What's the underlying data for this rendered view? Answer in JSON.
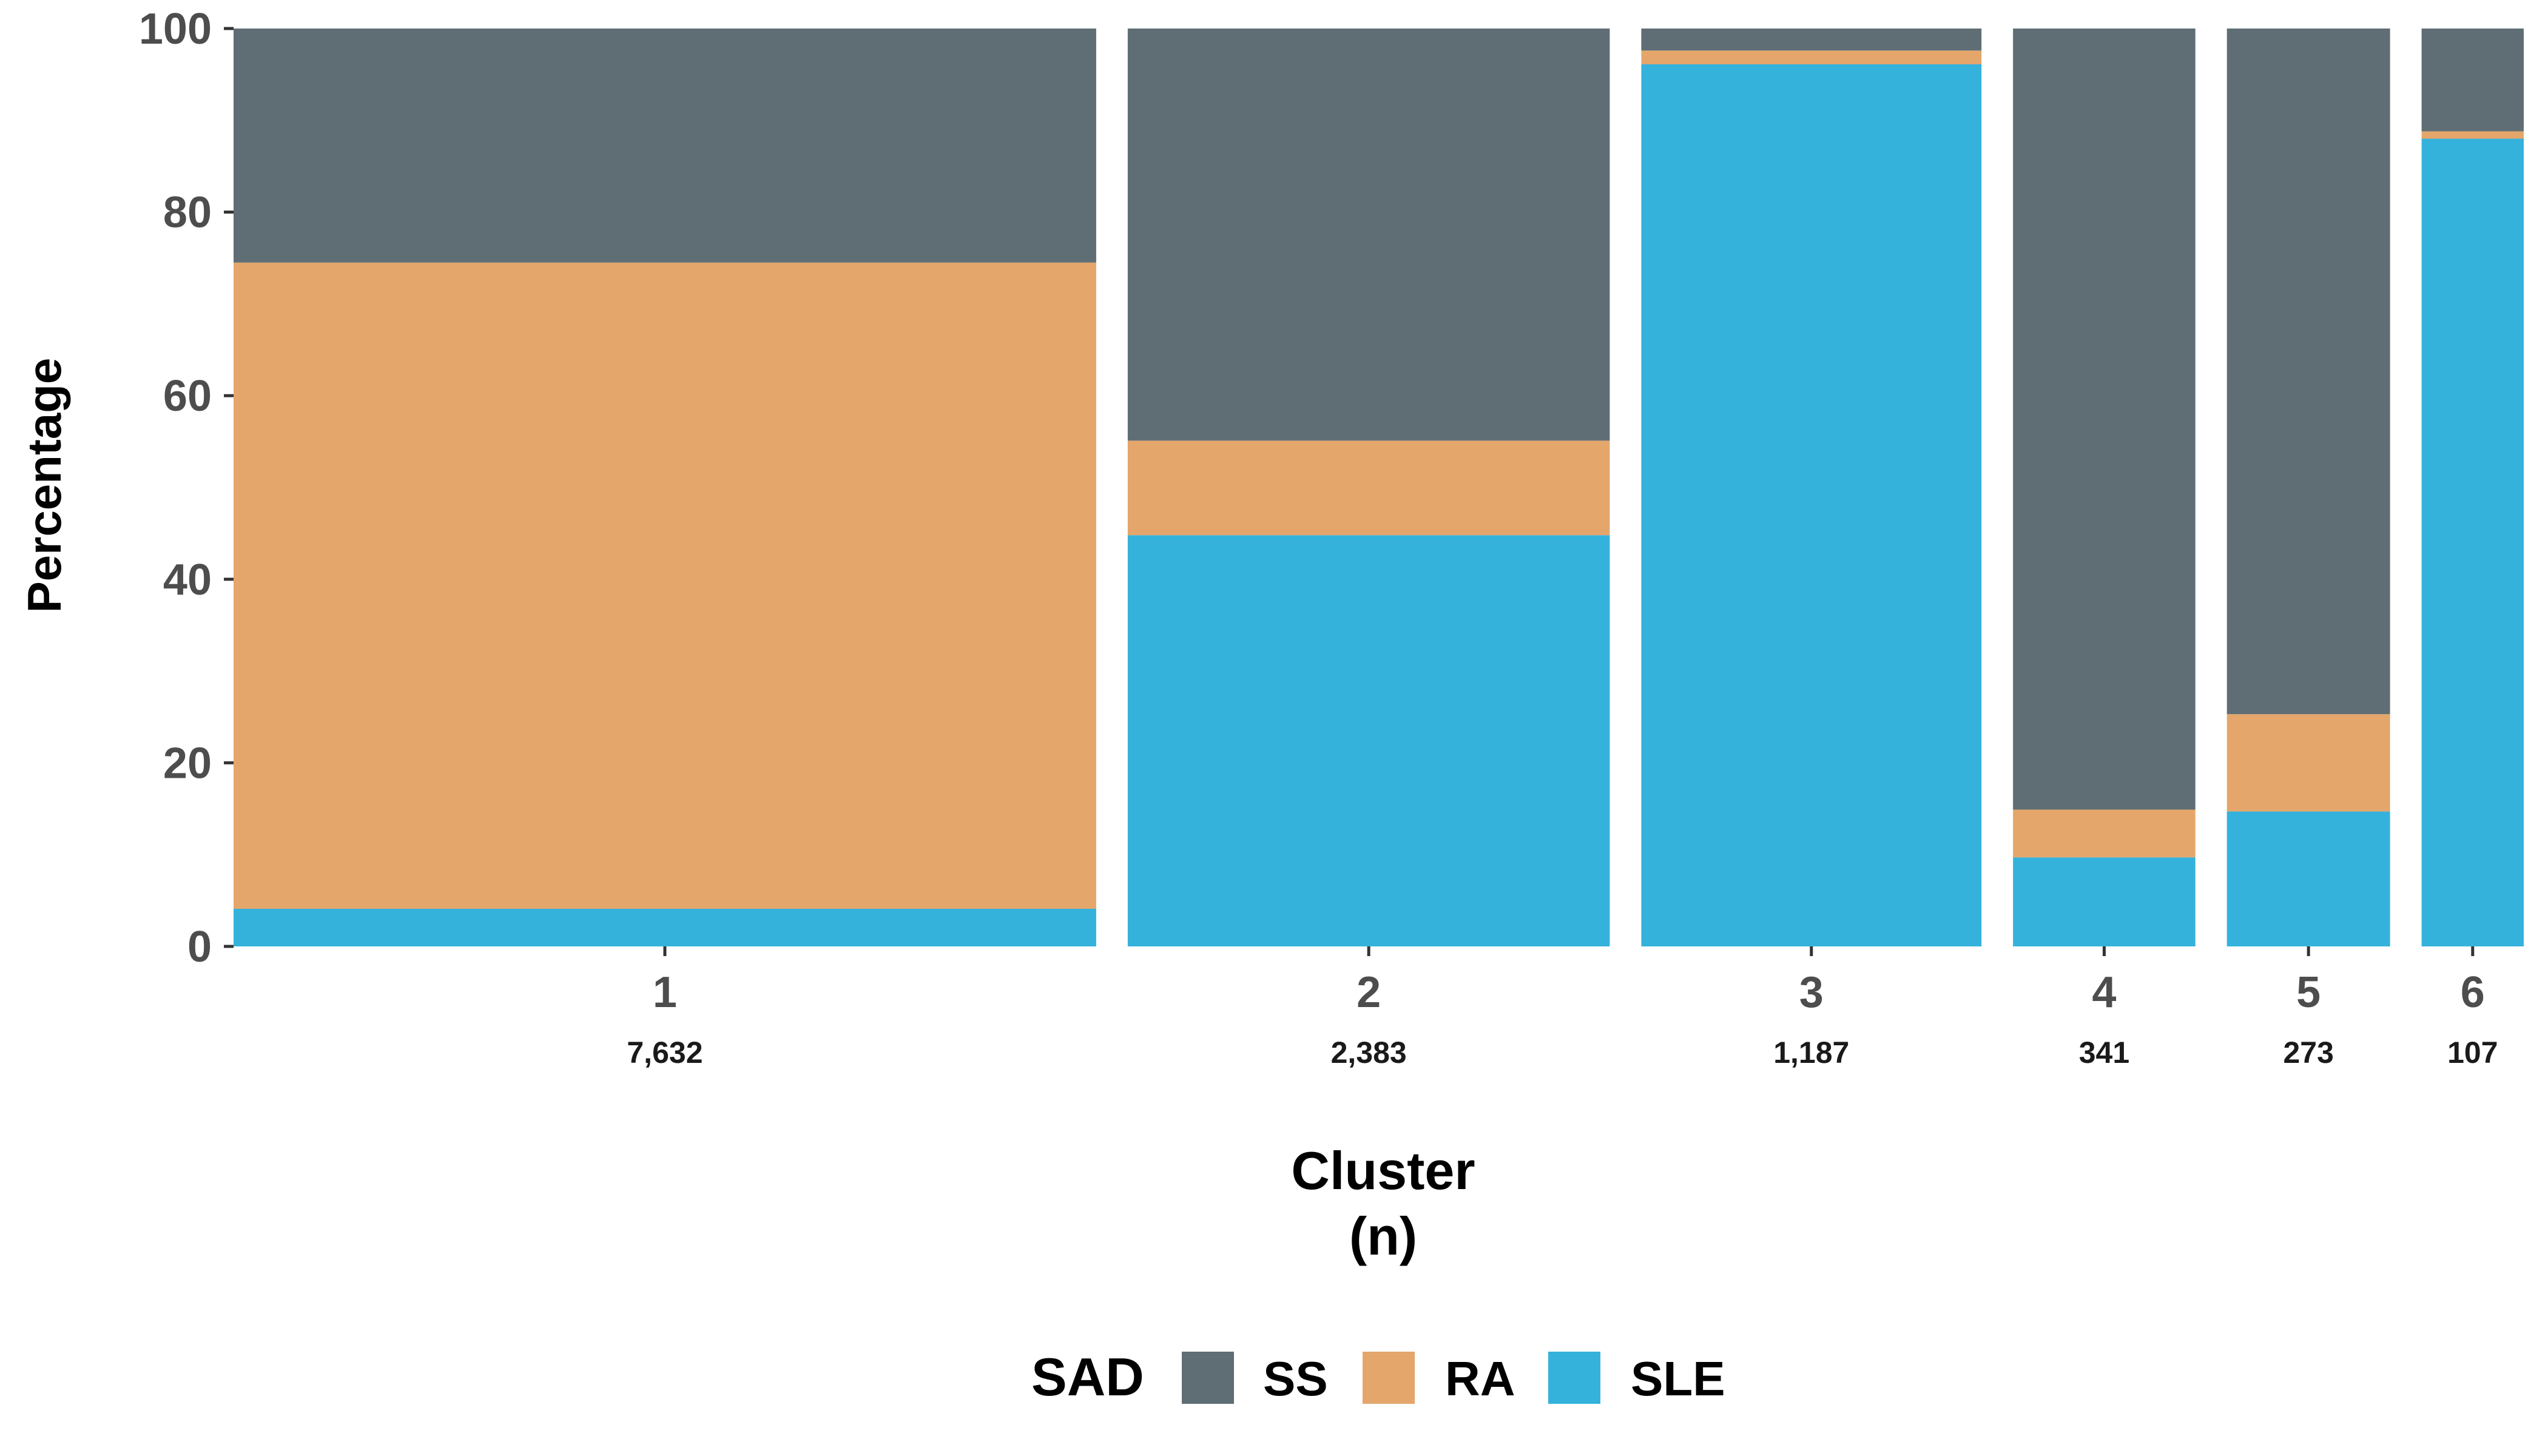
{
  "chart_data": {
    "type": "bar",
    "subtype": "stacked-percent-variable-width",
    "xlabel_line1": "Cluster",
    "xlabel_line2": "(n)",
    "ylabel": "Percentage",
    "ylim": [
      0,
      100
    ],
    "yticks": [
      "0",
      "20",
      "40",
      "60",
      "80",
      "100"
    ],
    "grid": false,
    "legend": {
      "title": "SAD",
      "placement": "bottom",
      "entries": [
        "SS",
        "RA",
        "SLE"
      ]
    },
    "colors": {
      "SS": "#5f6e75",
      "RA": "#e4a66b",
      "SLE": "#34b2dc",
      "tick": "#333333"
    },
    "categories": [
      "1",
      "2",
      "3",
      "4",
      "5",
      "6"
    ],
    "n_labels": [
      "7,632",
      "2,383",
      "1,187",
      "341",
      "273",
      "107"
    ],
    "n_values": [
      7632,
      2383,
      1187,
      341,
      273,
      107
    ],
    "series": [
      {
        "name": "SLE",
        "values": [
          4.1,
          44.8,
          96.1,
          9.7,
          14.7,
          88.0
        ]
      },
      {
        "name": "RA",
        "values": [
          70.4,
          10.3,
          1.5,
          5.2,
          10.6,
          0.8
        ]
      },
      {
        "name": "SS",
        "values": [
          25.5,
          44.9,
          2.4,
          85.1,
          74.7,
          11.2
        ]
      }
    ]
  }
}
